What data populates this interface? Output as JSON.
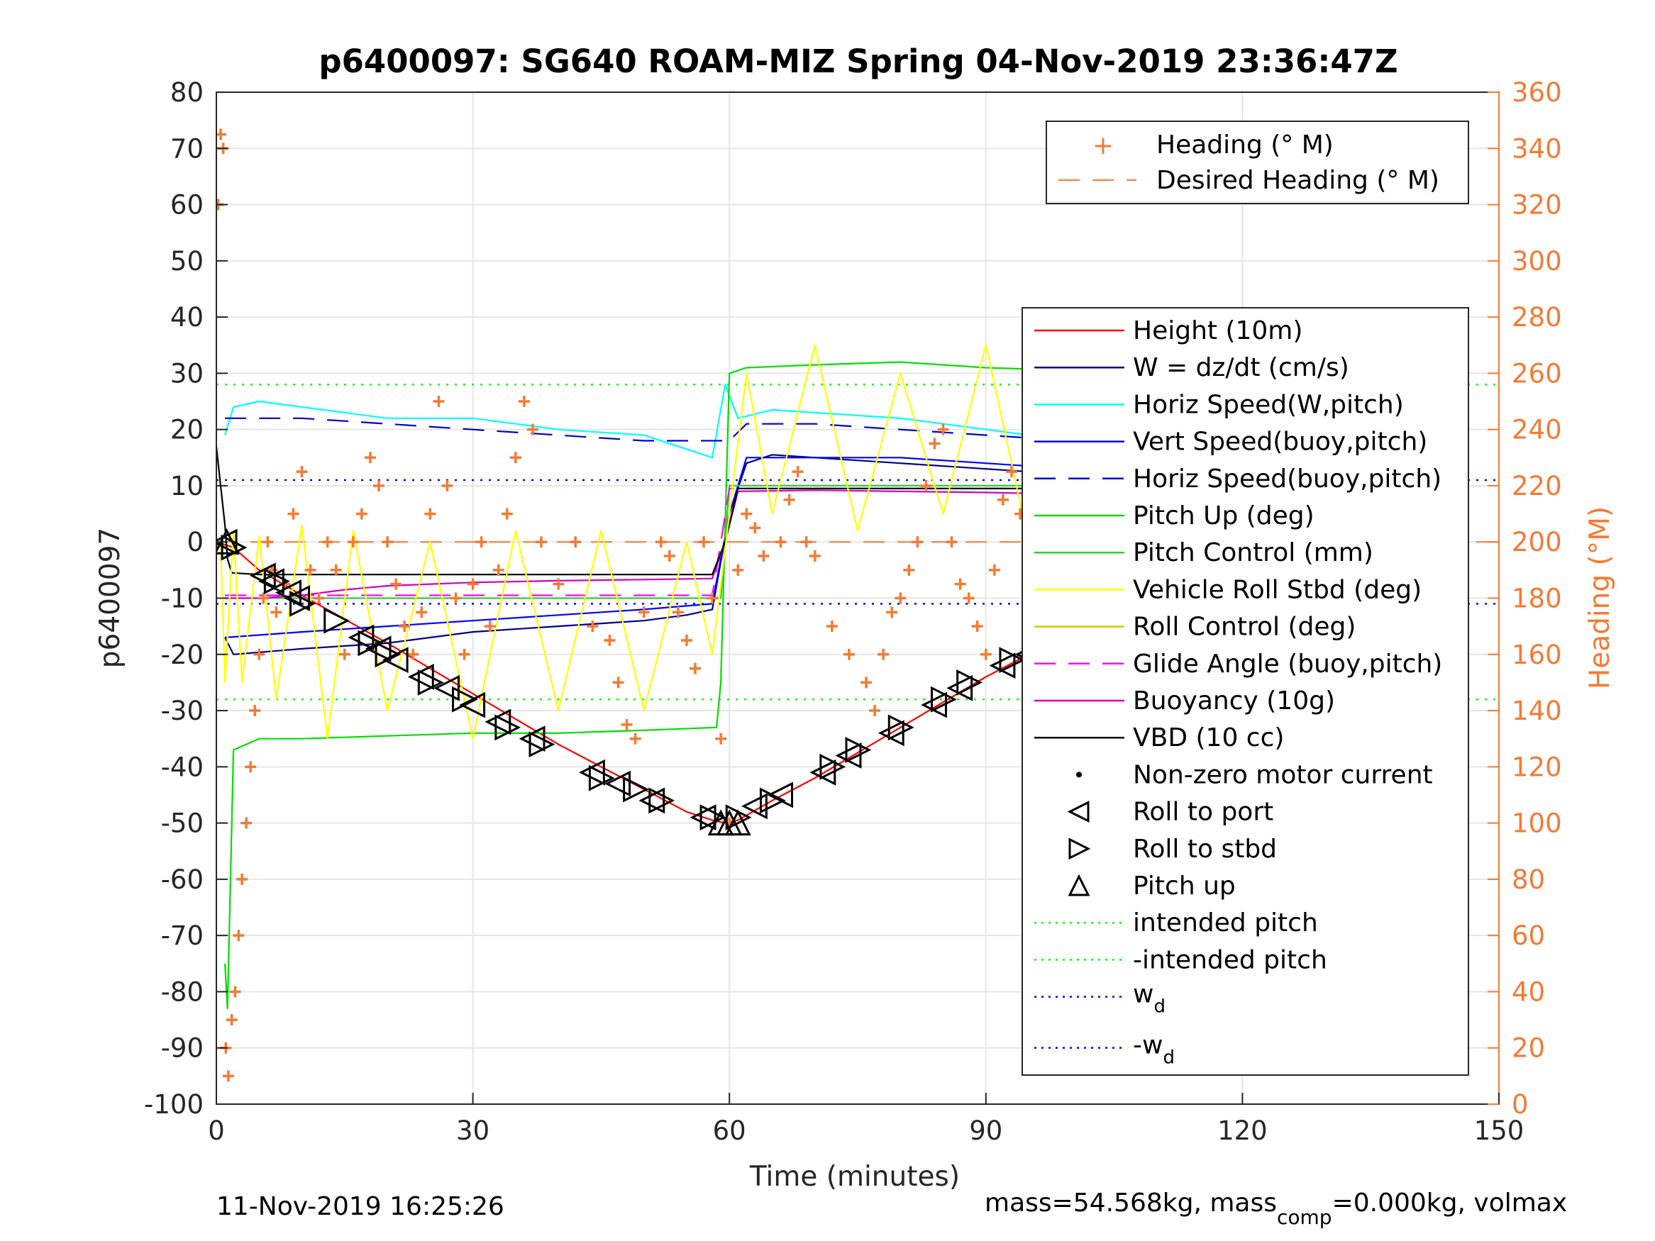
{
  "chart_data": {
    "type": "line",
    "title": "p6400097: SG640 ROAM-MIZ Spring 04-Nov-2019 23:36:47Z",
    "xlabel": "Time (minutes)",
    "ylabel": "p6400097",
    "ylabel_right": "Heading (°M)",
    "xlim": [
      0,
      150
    ],
    "ylim": [
      -100,
      80
    ],
    "ylim_right": [
      0,
      360
    ],
    "x_ticks": [
      "0",
      "30",
      "60",
      "90",
      "120",
      "150"
    ],
    "y_ticks": [
      "80",
      "70",
      "60",
      "50",
      "40",
      "30",
      "20",
      "10",
      "0",
      "-10",
      "-20",
      "-30",
      "-40",
      "-50",
      "-60",
      "-70",
      "-80",
      "-90",
      "-100"
    ],
    "y_ticks_right": [
      "360",
      "340",
      "320",
      "300",
      "280",
      "260",
      "240",
      "220",
      "200",
      "180",
      "160",
      "140",
      "120",
      "100",
      "80",
      "60",
      "40",
      "20",
      "0"
    ],
    "grid": true,
    "colors": {
      "height": "#ff0000",
      "w": "#00008b",
      "horiz_speed": "#00ffff",
      "vert_speed": "#0000ff",
      "horiz_speed_buoy": "#0000cd",
      "pitch_up": "#00dd00",
      "pitch_control": "#32cd32",
      "roll": "#ffff00",
      "roll_control": "#cccc00",
      "glide": "#ff00ff",
      "buoyancy": "#cc00cc",
      "vbd": "#000000",
      "heading": "#f47a33",
      "intended_pitch": "#00ff00",
      "wd": "#0000ff"
    },
    "legend_top": {
      "position": "top-right",
      "entries": [
        "Heading (° M)",
        "Desired Heading (° M)"
      ]
    },
    "legend_main": {
      "position": "right",
      "entries": [
        "Height (10m)",
        "W = dz/dt (cm/s)",
        "Horiz Speed(W,pitch)",
        "Vert Speed(buoy,pitch)",
        "Horiz Speed(buoy,pitch)",
        "Pitch Up (deg)",
        "Pitch Control (mm)",
        "Vehicle Roll Stbd (deg)",
        "Roll Control (deg)",
        "Glide Angle (buoy,pitch)",
        "Buoyancy (10g)",
        "VBD (10 cc)",
        "Non-zero motor current",
        "Roll to port",
        "Roll to stbd",
        "Pitch up",
        "intended pitch",
        "-intended pitch"
      ],
      "wd_label": "w",
      "wd_sub": "d",
      "neg_wd_label": "-w",
      "neg_wd_sub": "d"
    },
    "series": [
      {
        "name": "Height (10m)",
        "x": [
          0,
          2,
          5,
          10,
          20,
          30,
          40,
          50,
          55,
          58,
          59.5,
          61,
          65,
          70,
          80,
          90,
          100,
          110,
          115,
          120,
          122
        ],
        "y": [
          0,
          -1,
          -5,
          -9.5,
          -18,
          -27,
          -36,
          -44,
          -48,
          -49.5,
          -50,
          -49.5,
          -46,
          -42,
          -33,
          -24,
          -16,
          -8,
          -4,
          -1,
          0
        ]
      },
      {
        "name": "W = dz/dt (cm/s)",
        "x": [
          1,
          2,
          10,
          20,
          30,
          40,
          50,
          55,
          58,
          60,
          62,
          65,
          70,
          80,
          90,
          100,
          110,
          120,
          122
        ],
        "y": [
          -17,
          -20,
          -19,
          -18,
          -16,
          -15,
          -14,
          -13,
          -12,
          5,
          14,
          15.5,
          15,
          14,
          13,
          12,
          13,
          14,
          14
        ]
      },
      {
        "name": "Horiz Speed(W,pitch)",
        "x": [
          1,
          2,
          5,
          10,
          20,
          30,
          40,
          50,
          58,
          59.5,
          61,
          65,
          70,
          80,
          90,
          100,
          110,
          120,
          122
        ],
        "y": [
          19,
          24,
          25,
          24,
          22,
          22,
          20,
          19,
          15,
          28,
          22,
          23.5,
          23,
          22,
          20,
          18,
          16,
          14,
          14
        ]
      },
      {
        "name": "Vert Speed(buoy,pitch)",
        "x": [
          1,
          10,
          20,
          30,
          40,
          50,
          58,
          60,
          62,
          70,
          80,
          90,
          100,
          110,
          120,
          122
        ],
        "y": [
          -17,
          -16,
          -15,
          -14,
          -13,
          -12,
          -11,
          5,
          15,
          15,
          15,
          14,
          13,
          12,
          12,
          12
        ]
      },
      {
        "name": "Horiz Speed(buoy,pitch)",
        "x": [
          1,
          10,
          20,
          30,
          40,
          50,
          58,
          60,
          62,
          70,
          80,
          90,
          100,
          110,
          120,
          122
        ],
        "y": [
          22,
          22,
          21,
          20,
          19,
          18,
          18,
          18,
          21,
          21,
          20,
          19,
          18,
          17,
          16,
          16
        ]
      },
      {
        "name": "Pitch Up (deg)",
        "x": [
          1,
          1.3,
          2,
          5,
          10,
          20,
          30,
          40,
          50,
          58.5,
          59,
          60,
          62,
          70,
          80,
          90,
          100,
          110,
          120,
          122
        ],
        "y": [
          -75,
          -83,
          -37,
          -35,
          -35,
          -34.5,
          -34,
          -34,
          -33.5,
          -33,
          -25,
          30,
          31,
          31.5,
          32,
          31,
          30.5,
          30,
          30,
          30
        ]
      },
      {
        "name": "Pitch Control (mm)",
        "x": [
          1,
          2,
          58,
          59,
          60,
          122
        ],
        "y": [
          -10,
          -10,
          -10,
          -10,
          10,
          10
        ]
      },
      {
        "name": "Glide Angle (buoy,pitch)",
        "x": [
          1,
          10,
          30,
          58,
          60,
          62,
          122
        ],
        "y": [
          -9.5,
          -9.5,
          -9.5,
          -9.5,
          9.5,
          9.5,
          9.5
        ]
      },
      {
        "name": "Buoyancy (10g)",
        "x": [
          1,
          5,
          10,
          15,
          20,
          30,
          40,
          50,
          58,
          59.5,
          61,
          70,
          80,
          90,
          100,
          110,
          120,
          122
        ],
        "y": [
          -10,
          -10,
          -9.5,
          -8.5,
          -7.8,
          -7.2,
          -6.9,
          -6.7,
          -6.5,
          0,
          9,
          9.2,
          9,
          8.8,
          8.5,
          8,
          7.8,
          7.8
        ]
      },
      {
        "name": "VBD (10 cc)",
        "x": [
          0,
          0.5,
          1,
          1.3,
          1.8,
          5,
          30,
          58,
          59.5,
          61,
          90,
          98,
          99,
          122
        ],
        "y": [
          17,
          10,
          3,
          -3,
          -5.5,
          -5.8,
          -5.8,
          -5.8,
          0,
          9.5,
          9.5,
          9.5,
          10,
          10
        ]
      },
      {
        "name": "Vehicle Roll Stbd (deg)",
        "x": [
          0.5,
          1,
          2,
          3,
          5,
          7,
          10,
          13,
          16,
          20,
          25,
          30,
          35,
          40,
          45,
          50,
          55,
          58,
          60,
          62,
          65,
          70,
          75,
          80,
          85,
          90,
          95,
          100,
          105
        ],
        "y": [
          0,
          -25,
          2,
          -25,
          1,
          -28,
          3,
          -35,
          2,
          -30,
          0,
          -35,
          2,
          -30,
          2,
          -30,
          0,
          -20,
          5,
          30,
          5,
          35,
          2,
          30,
          5,
          35,
          0,
          30,
          10
        ]
      }
    ],
    "heading": {
      "name": "Heading (° M)",
      "x": [
        0.2,
        0.5,
        0.8,
        1.1,
        1.4,
        1.8,
        2.2,
        2.6,
        3,
        3.5,
        4,
        4.5,
        5,
        5.5,
        6,
        6.5,
        7,
        8,
        9,
        10,
        11,
        12,
        13,
        14,
        15,
        16,
        17,
        18,
        19,
        20,
        21,
        22,
        23,
        24,
        25,
        26,
        27,
        28,
        29,
        30,
        31,
        32,
        33,
        34,
        35,
        36,
        37,
        38,
        40,
        42,
        44,
        46,
        47,
        48,
        49,
        50,
        52,
        53,
        54,
        55,
        56,
        57,
        58,
        59,
        60,
        61,
        62,
        63,
        64,
        66,
        67,
        68,
        69,
        70,
        72,
        74,
        76,
        77,
        78,
        79,
        80,
        81,
        82,
        83,
        84,
        85,
        86,
        87,
        88,
        89,
        90,
        91,
        92,
        93,
        94,
        95,
        96,
        97,
        98,
        99,
        100,
        101,
        102,
        103,
        104,
        105,
        106,
        108,
        110,
        112,
        114,
        116,
        118,
        120
      ],
      "y": [
        320,
        345,
        340,
        20,
        10,
        30,
        40,
        60,
        80,
        100,
        120,
        140,
        160,
        180,
        200,
        190,
        175,
        185,
        210,
        225,
        190,
        180,
        200,
        190,
        160,
        200,
        210,
        230,
        220,
        200,
        185,
        170,
        160,
        175,
        210,
        250,
        220,
        180,
        160,
        185,
        200,
        170,
        190,
        210,
        230,
        250,
        240,
        200,
        185,
        200,
        170,
        165,
        150,
        135,
        130,
        175,
        200,
        195,
        175,
        165,
        155,
        200,
        180,
        130,
        100,
        190,
        210,
        205,
        195,
        200,
        215,
        225,
        200,
        195,
        170,
        160,
        150,
        140,
        160,
        175,
        180,
        190,
        200,
        220,
        235,
        240,
        200,
        185,
        180,
        170,
        160,
        190,
        215,
        225,
        210,
        195,
        170,
        160,
        150,
        140,
        160,
        175,
        200,
        215,
        225,
        195,
        185,
        180,
        190,
        175,
        180,
        190,
        195,
        200
      ]
    },
    "desired_heading": {
      "name": "Desired Heading (° M)",
      "value": 200
    },
    "intended_pitch": 28,
    "wd": 11,
    "markers": {
      "roll_port": {
        "name": "Roll to port",
        "x": [
          1,
          5.5,
          6.5,
          8.5,
          9.5,
          17,
          19,
          21,
          24,
          27,
          30,
          33,
          37,
          44,
          47,
          51,
          57,
          63,
          66,
          71,
          74,
          79,
          84,
          87,
          92,
          95,
          98,
          100,
          103,
          105,
          108,
          111,
          114,
          117,
          120
        ],
        "y": [
          0,
          -6,
          -7,
          -9,
          -10,
          -17,
          -19,
          -21,
          -24,
          -26,
          -29,
          -32,
          -35,
          -41,
          -43,
          -46,
          -49,
          -47,
          -45,
          -41,
          -38,
          -34,
          -29,
          -26,
          -22,
          -20,
          -18,
          -16,
          -14,
          -13,
          -11,
          -9,
          -6,
          -4,
          -1
        ]
      },
      "roll_stbd": {
        "name": "Roll to stbd",
        "x": [
          2,
          7,
          10,
          14,
          18,
          20,
          25,
          29,
          34,
          38,
          45,
          49,
          52,
          58,
          61,
          65,
          72,
          75,
          80,
          85,
          88,
          93,
          96,
          99,
          102,
          106,
          110,
          115,
          118,
          122
        ],
        "y": [
          -1,
          -7,
          -11,
          -14,
          -18,
          -20,
          -25,
          -28,
          -33,
          -36,
          -42,
          -44,
          -46,
          -49,
          -49,
          -46,
          -40,
          -37,
          -33,
          -28,
          -25,
          -21,
          -19,
          -17,
          -15,
          -12,
          -9,
          -5,
          -3,
          0
        ]
      },
      "pitch_up": {
        "name": "Pitch up",
        "x": [
          1.2,
          59,
          60,
          61
        ],
        "y": [
          0,
          -50,
          -50,
          -50
        ]
      }
    },
    "footer": {
      "timestamp": "11-Nov-2019 16:25:26",
      "mass_text": "mass=54.568kg, mass",
      "mass_sub": "comp",
      "mass_tail": "=0.000kg, volmax"
    }
  }
}
